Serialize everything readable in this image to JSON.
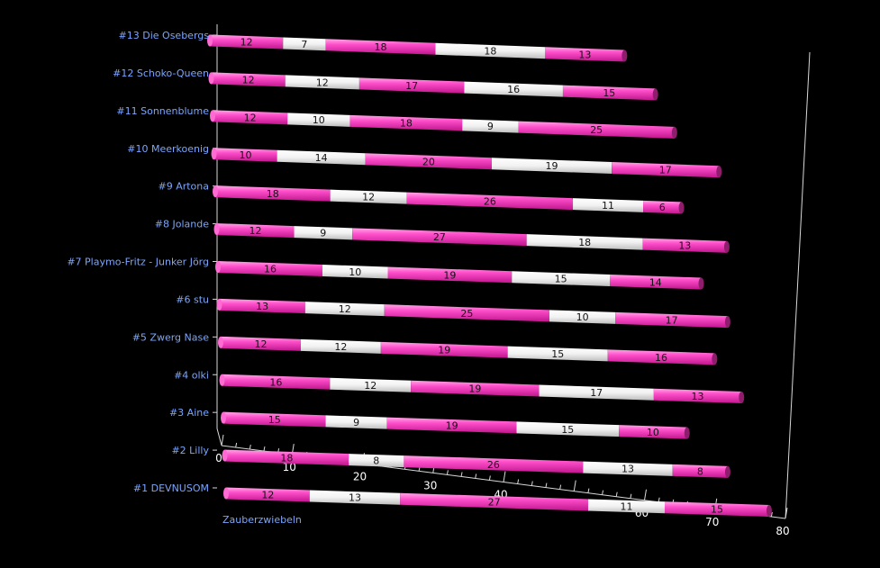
{
  "chart_data": {
    "type": "bar",
    "orientation": "horizontal",
    "stacked": true,
    "three_d": true,
    "xlabel": "Zauberzwiebeln",
    "xlim": [
      0,
      80
    ],
    "x_ticks": [
      "0",
      "10",
      "20",
      "30",
      "40",
      "50",
      "60",
      "70",
      "80"
    ],
    "grid": false,
    "legend": "none",
    "colors": {
      "pink": "#ff3fc6",
      "white": "#ffffff",
      "background": "#000000",
      "label": "#7aa6ff"
    },
    "categories": [
      "#13 Die Osebergs",
      "#12 Schoko-Queen",
      "#11 Sonnenblume",
      "#10 Meerkoenig",
      "#9 Artona",
      "#8 Jolande",
      "#7 Playmo-Fritz - Junker Jörg",
      "#6 stu",
      "#5 Zwerg Nase",
      "#4 olki",
      "#3 Aine",
      "#2 Lilly",
      "#1 DEVNUSOM"
    ],
    "rows": [
      {
        "segments": [
          12,
          7,
          18,
          18,
          13
        ]
      },
      {
        "segments": [
          12,
          12,
          17,
          16,
          15
        ]
      },
      {
        "segments": [
          12,
          10,
          18,
          9,
          25
        ]
      },
      {
        "segments": [
          10,
          14,
          20,
          19,
          17
        ]
      },
      {
        "segments": [
          18,
          12,
          26,
          11,
          6
        ]
      },
      {
        "segments": [
          12,
          9,
          27,
          18,
          13
        ]
      },
      {
        "segments": [
          16,
          10,
          19,
          15,
          14
        ]
      },
      {
        "segments": [
          13,
          12,
          25,
          10,
          17
        ]
      },
      {
        "segments": [
          12,
          12,
          19,
          15,
          16
        ]
      },
      {
        "segments": [
          16,
          12,
          19,
          17,
          13
        ]
      },
      {
        "segments": [
          15,
          9,
          19,
          15,
          10
        ]
      },
      {
        "segments": [
          18,
          8,
          26,
          13,
          8
        ]
      },
      {
        "segments": [
          12,
          13,
          27,
          11,
          15
        ]
      }
    ]
  }
}
